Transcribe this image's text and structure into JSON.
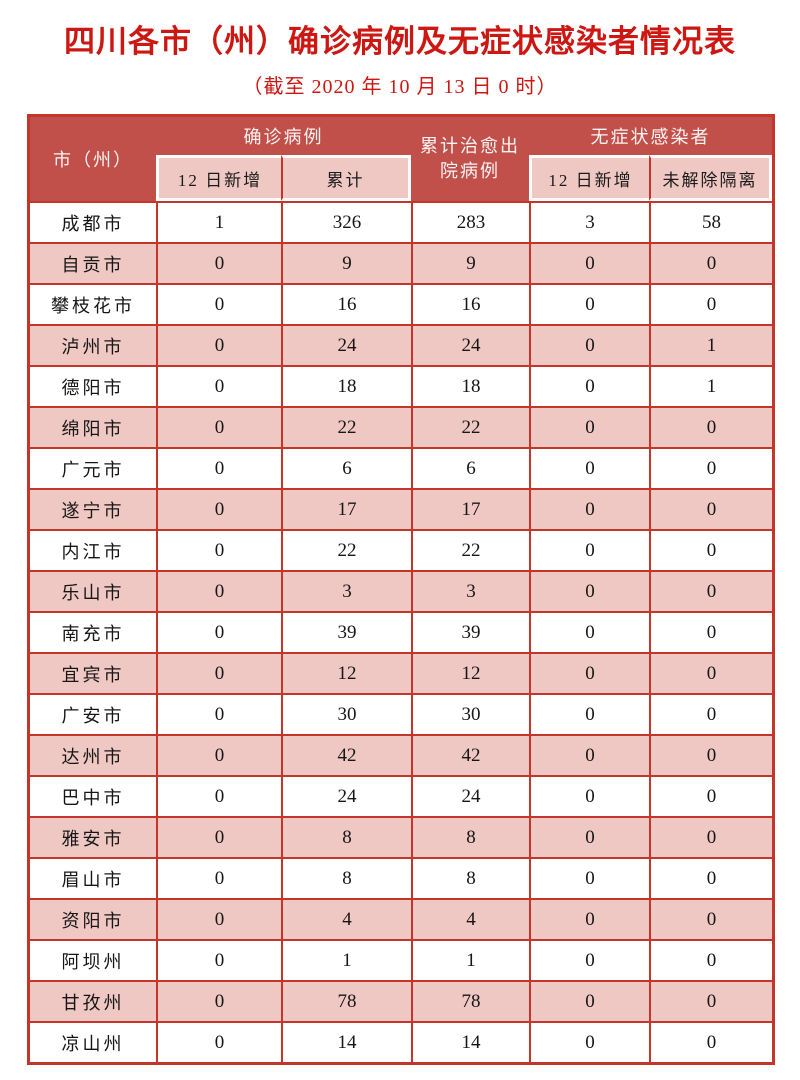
{
  "page": {
    "title": "四川各市（州）确诊病例及无症状感染者情况表",
    "subtitle": "（截至 2020 年 10 月 13 日 0 时）"
  },
  "table": {
    "header": {
      "col_city": "市（州）",
      "group_confirmed": "确诊病例",
      "col_discharged_line1": "累计治愈出",
      "col_discharged_line2": "院病例",
      "group_asymptomatic": "无症状感染者",
      "sub_new_confirmed": "12 日新增",
      "sub_cumulative": "累计",
      "sub_new_asymptomatic": "12 日新增",
      "sub_not_released": "未解除隔离"
    }
  },
  "chart_data": {
    "type": "table",
    "title": "四川各市（州）确诊病例及无症状感染者情况表",
    "subtitle": "（截至 2020 年 10 月 13 日 0 时）",
    "columns": [
      "市（州）",
      "确诊病例·12日新增",
      "确诊病例·累计",
      "累计治愈出院病例",
      "无症状感染者·12日新增",
      "无症状感染者·未解除隔离"
    ],
    "rows": [
      [
        "成都市",
        1,
        326,
        283,
        3,
        58
      ],
      [
        "自贡市",
        0,
        9,
        9,
        0,
        0
      ],
      [
        "攀枝花市",
        0,
        16,
        16,
        0,
        0
      ],
      [
        "泸州市",
        0,
        24,
        24,
        0,
        1
      ],
      [
        "德阳市",
        0,
        18,
        18,
        0,
        1
      ],
      [
        "绵阳市",
        0,
        22,
        22,
        0,
        0
      ],
      [
        "广元市",
        0,
        6,
        6,
        0,
        0
      ],
      [
        "遂宁市",
        0,
        17,
        17,
        0,
        0
      ],
      [
        "内江市",
        0,
        22,
        22,
        0,
        0
      ],
      [
        "乐山市",
        0,
        3,
        3,
        0,
        0
      ],
      [
        "南充市",
        0,
        39,
        39,
        0,
        0
      ],
      [
        "宜宾市",
        0,
        12,
        12,
        0,
        0
      ],
      [
        "广安市",
        0,
        30,
        30,
        0,
        0
      ],
      [
        "达州市",
        0,
        42,
        42,
        0,
        0
      ],
      [
        "巴中市",
        0,
        24,
        24,
        0,
        0
      ],
      [
        "雅安市",
        0,
        8,
        8,
        0,
        0
      ],
      [
        "眉山市",
        0,
        8,
        8,
        0,
        0
      ],
      [
        "资阳市",
        0,
        4,
        4,
        0,
        0
      ],
      [
        "阿坝州",
        0,
        1,
        1,
        0,
        0
      ],
      [
        "甘孜州",
        0,
        78,
        78,
        0,
        0
      ],
      [
        "凉山州",
        0,
        14,
        14,
        0,
        0
      ]
    ]
  },
  "colors": {
    "title_red": "#cd1712",
    "header_bg": "#c1504b",
    "border_red": "#c5362a",
    "row_pink": "#efc7c3",
    "row_white": "#ffffff",
    "header_text": "#fdf4f3",
    "data_text": "#161616"
  }
}
